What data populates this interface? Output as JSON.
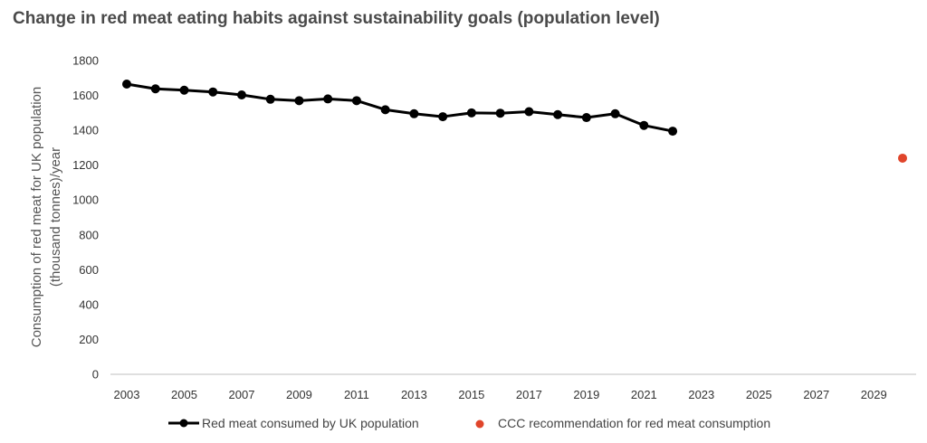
{
  "chart_data": {
    "type": "line",
    "title": "Change in red meat eating habits against sustainability goals (population level)",
    "ylabel_line1": "Consumption of red meat for UK population",
    "ylabel_line2": "(thousand tonnes)/year",
    "xlabel": "",
    "xlim": [
      2003,
      2030
    ],
    "ylim": [
      0,
      1800
    ],
    "yticks": [
      "0",
      "200",
      "400",
      "600",
      "800",
      "1000",
      "1200",
      "1400",
      "1600",
      "1800"
    ],
    "xticks": [
      "2003",
      "2005",
      "2007",
      "2009",
      "2011",
      "2013",
      "2015",
      "2017",
      "2019",
      "2021",
      "2023",
      "2025",
      "2027",
      "2029"
    ],
    "grid": false,
    "legend_position": "bottom",
    "series": [
      {
        "name": "Red meat consumed by UK population",
        "color": "#000000",
        "x": [
          2003,
          2004,
          2005,
          2006,
          2007,
          2008,
          2009,
          2010,
          2011,
          2012,
          2013,
          2014,
          2015,
          2016,
          2017,
          2018,
          2019,
          2020,
          2021,
          2022
        ],
        "values": [
          1665,
          1638,
          1630,
          1620,
          1603,
          1578,
          1570,
          1580,
          1570,
          1518,
          1495,
          1478,
          1500,
          1498,
          1507,
          1490,
          1473,
          1495,
          1428,
          1395
        ]
      },
      {
        "name": "CCC recommendation for red meat consumption",
        "color": "#e0452b",
        "x": [
          2030
        ],
        "values": [
          1240
        ]
      }
    ]
  }
}
